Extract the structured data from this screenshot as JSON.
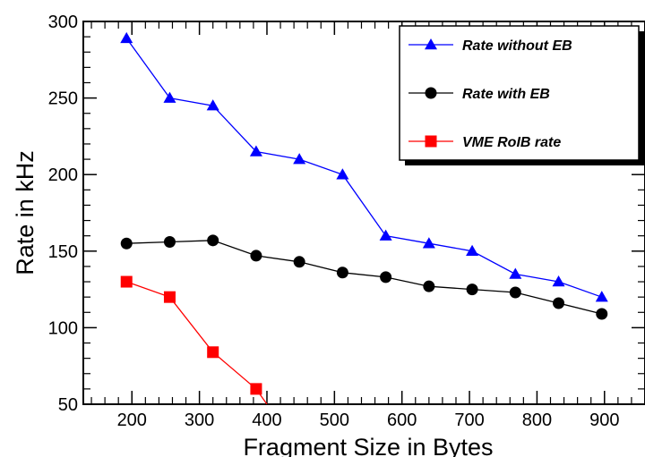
{
  "chart_data": {
    "type": "line",
    "xlabel": "Fragment Size in Bytes",
    "ylabel": "Rate in kHz",
    "xlim": [
      128,
      960
    ],
    "ylim": [
      50,
      300
    ],
    "x_ticks": [
      200,
      300,
      400,
      500,
      600,
      700,
      800,
      900
    ],
    "y_ticks": [
      50,
      100,
      150,
      200,
      250,
      300
    ],
    "grid": false,
    "legend_position": "top-right",
    "series": [
      {
        "name": "Rate without EB",
        "color": "#0000ff",
        "marker": "triangle",
        "x": [
          192,
          256,
          320,
          384,
          448,
          512,
          576,
          640,
          704,
          768,
          832,
          896
        ],
        "y": [
          289,
          250,
          245,
          215,
          210,
          200,
          160,
          155,
          150,
          135,
          130,
          120
        ]
      },
      {
        "name": "Rate with EB",
        "color": "#000000",
        "marker": "circle",
        "x": [
          192,
          256,
          320,
          384,
          448,
          512,
          576,
          640,
          704,
          768,
          832,
          896
        ],
        "y": [
          155,
          156,
          157,
          147,
          143,
          136,
          133,
          127,
          125,
          123,
          116,
          109
        ]
      },
      {
        "name": "VME RoIB rate",
        "color": "#ff0000",
        "marker": "square",
        "x": [
          192,
          256,
          320,
          384,
          400
        ],
        "y": [
          130,
          120,
          84,
          60,
          50
        ]
      }
    ]
  }
}
